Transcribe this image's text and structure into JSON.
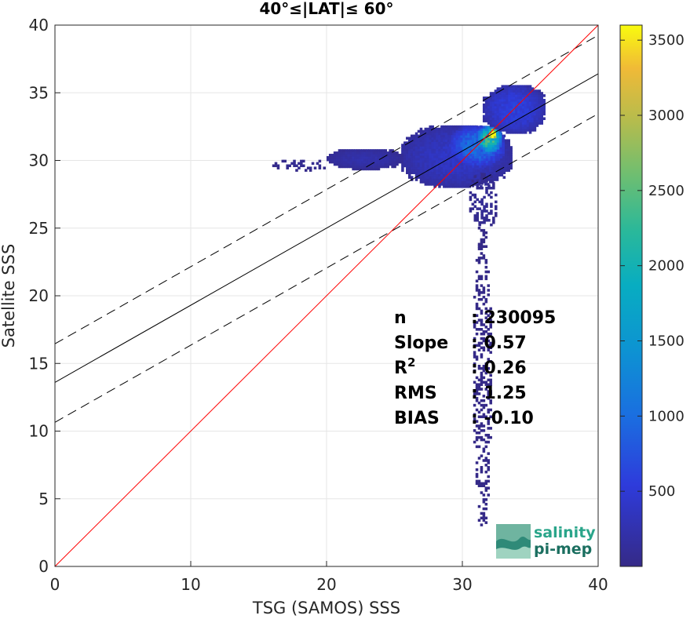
{
  "chart_data": {
    "type": "heatmap",
    "title": "40°≤|LAT|≤ 60°",
    "xlabel": "TSG (SAMOS) SSS",
    "ylabel": "Satellite SSS",
    "xlim": [
      0,
      40
    ],
    "ylim": [
      0,
      40
    ],
    "xticks": [
      "0",
      "10",
      "20",
      "30",
      "40"
    ],
    "yticks": [
      "0",
      "5",
      "10",
      "15",
      "20",
      "25",
      "30",
      "35",
      "40"
    ],
    "grid": true,
    "colorbar": {
      "range": [
        0,
        3600
      ],
      "ticks": [
        "500",
        "1000",
        "1500",
        "2000",
        "2500",
        "3000",
        "3500"
      ],
      "colormap": "parula"
    },
    "lines": {
      "identity": {
        "intercept": 0,
        "slope": 1,
        "color": "#ff0000"
      },
      "fit": {
        "intercept": 13.6,
        "slope": 0.57,
        "color": "#000000"
      },
      "fit_upper": {
        "intercept": 16.45,
        "slope": 0.57,
        "style": "dashed"
      },
      "fit_lower": {
        "intercept": 10.65,
        "slope": 0.57,
        "style": "dashed"
      }
    },
    "density_clusters": [
      {
        "x": [
          25.5,
          33.5
        ],
        "y": [
          28.0,
          32.5
        ],
        "level": 350
      },
      {
        "x": [
          29.0,
          33.0
        ],
        "y": [
          29.5,
          32.5
        ],
        "level": 900
      },
      {
        "x": [
          31.0,
          32.8
        ],
        "y": [
          30.5,
          32.5
        ],
        "level": 2000
      },
      {
        "x": [
          31.8,
          32.5
        ],
        "y": [
          31.5,
          32.3
        ],
        "level": 3500
      },
      {
        "x": [
          31.5,
          36.0
        ],
        "y": [
          32.0,
          35.5
        ],
        "level": 500
      },
      {
        "x": [
          20.0,
          25.5
        ],
        "y": [
          29.3,
          30.8
        ],
        "level": 200
      },
      {
        "x": [
          16.0,
          20.0
        ],
        "y": [
          29.2,
          30.0
        ],
        "level": 60
      },
      {
        "x": [
          30.5,
          32.5
        ],
        "y": [
          25.0,
          29.0
        ],
        "level": 80
      },
      {
        "x": [
          30.8,
          32.0
        ],
        "y": [
          3.0,
          25.0
        ],
        "level": 10
      }
    ],
    "stats": [
      {
        "label": "n",
        "value": ": 230095"
      },
      {
        "label": "Slope",
        "value": ": 0.57"
      },
      {
        "label": "R",
        "sup": "2",
        "value": ": 0.26"
      },
      {
        "label": "RMS",
        "value": ": 1.25"
      },
      {
        "label": "BIAS",
        "value": ": -0.10"
      }
    ]
  },
  "logo": {
    "line1": "salinity",
    "line2": "pi-mep"
  }
}
